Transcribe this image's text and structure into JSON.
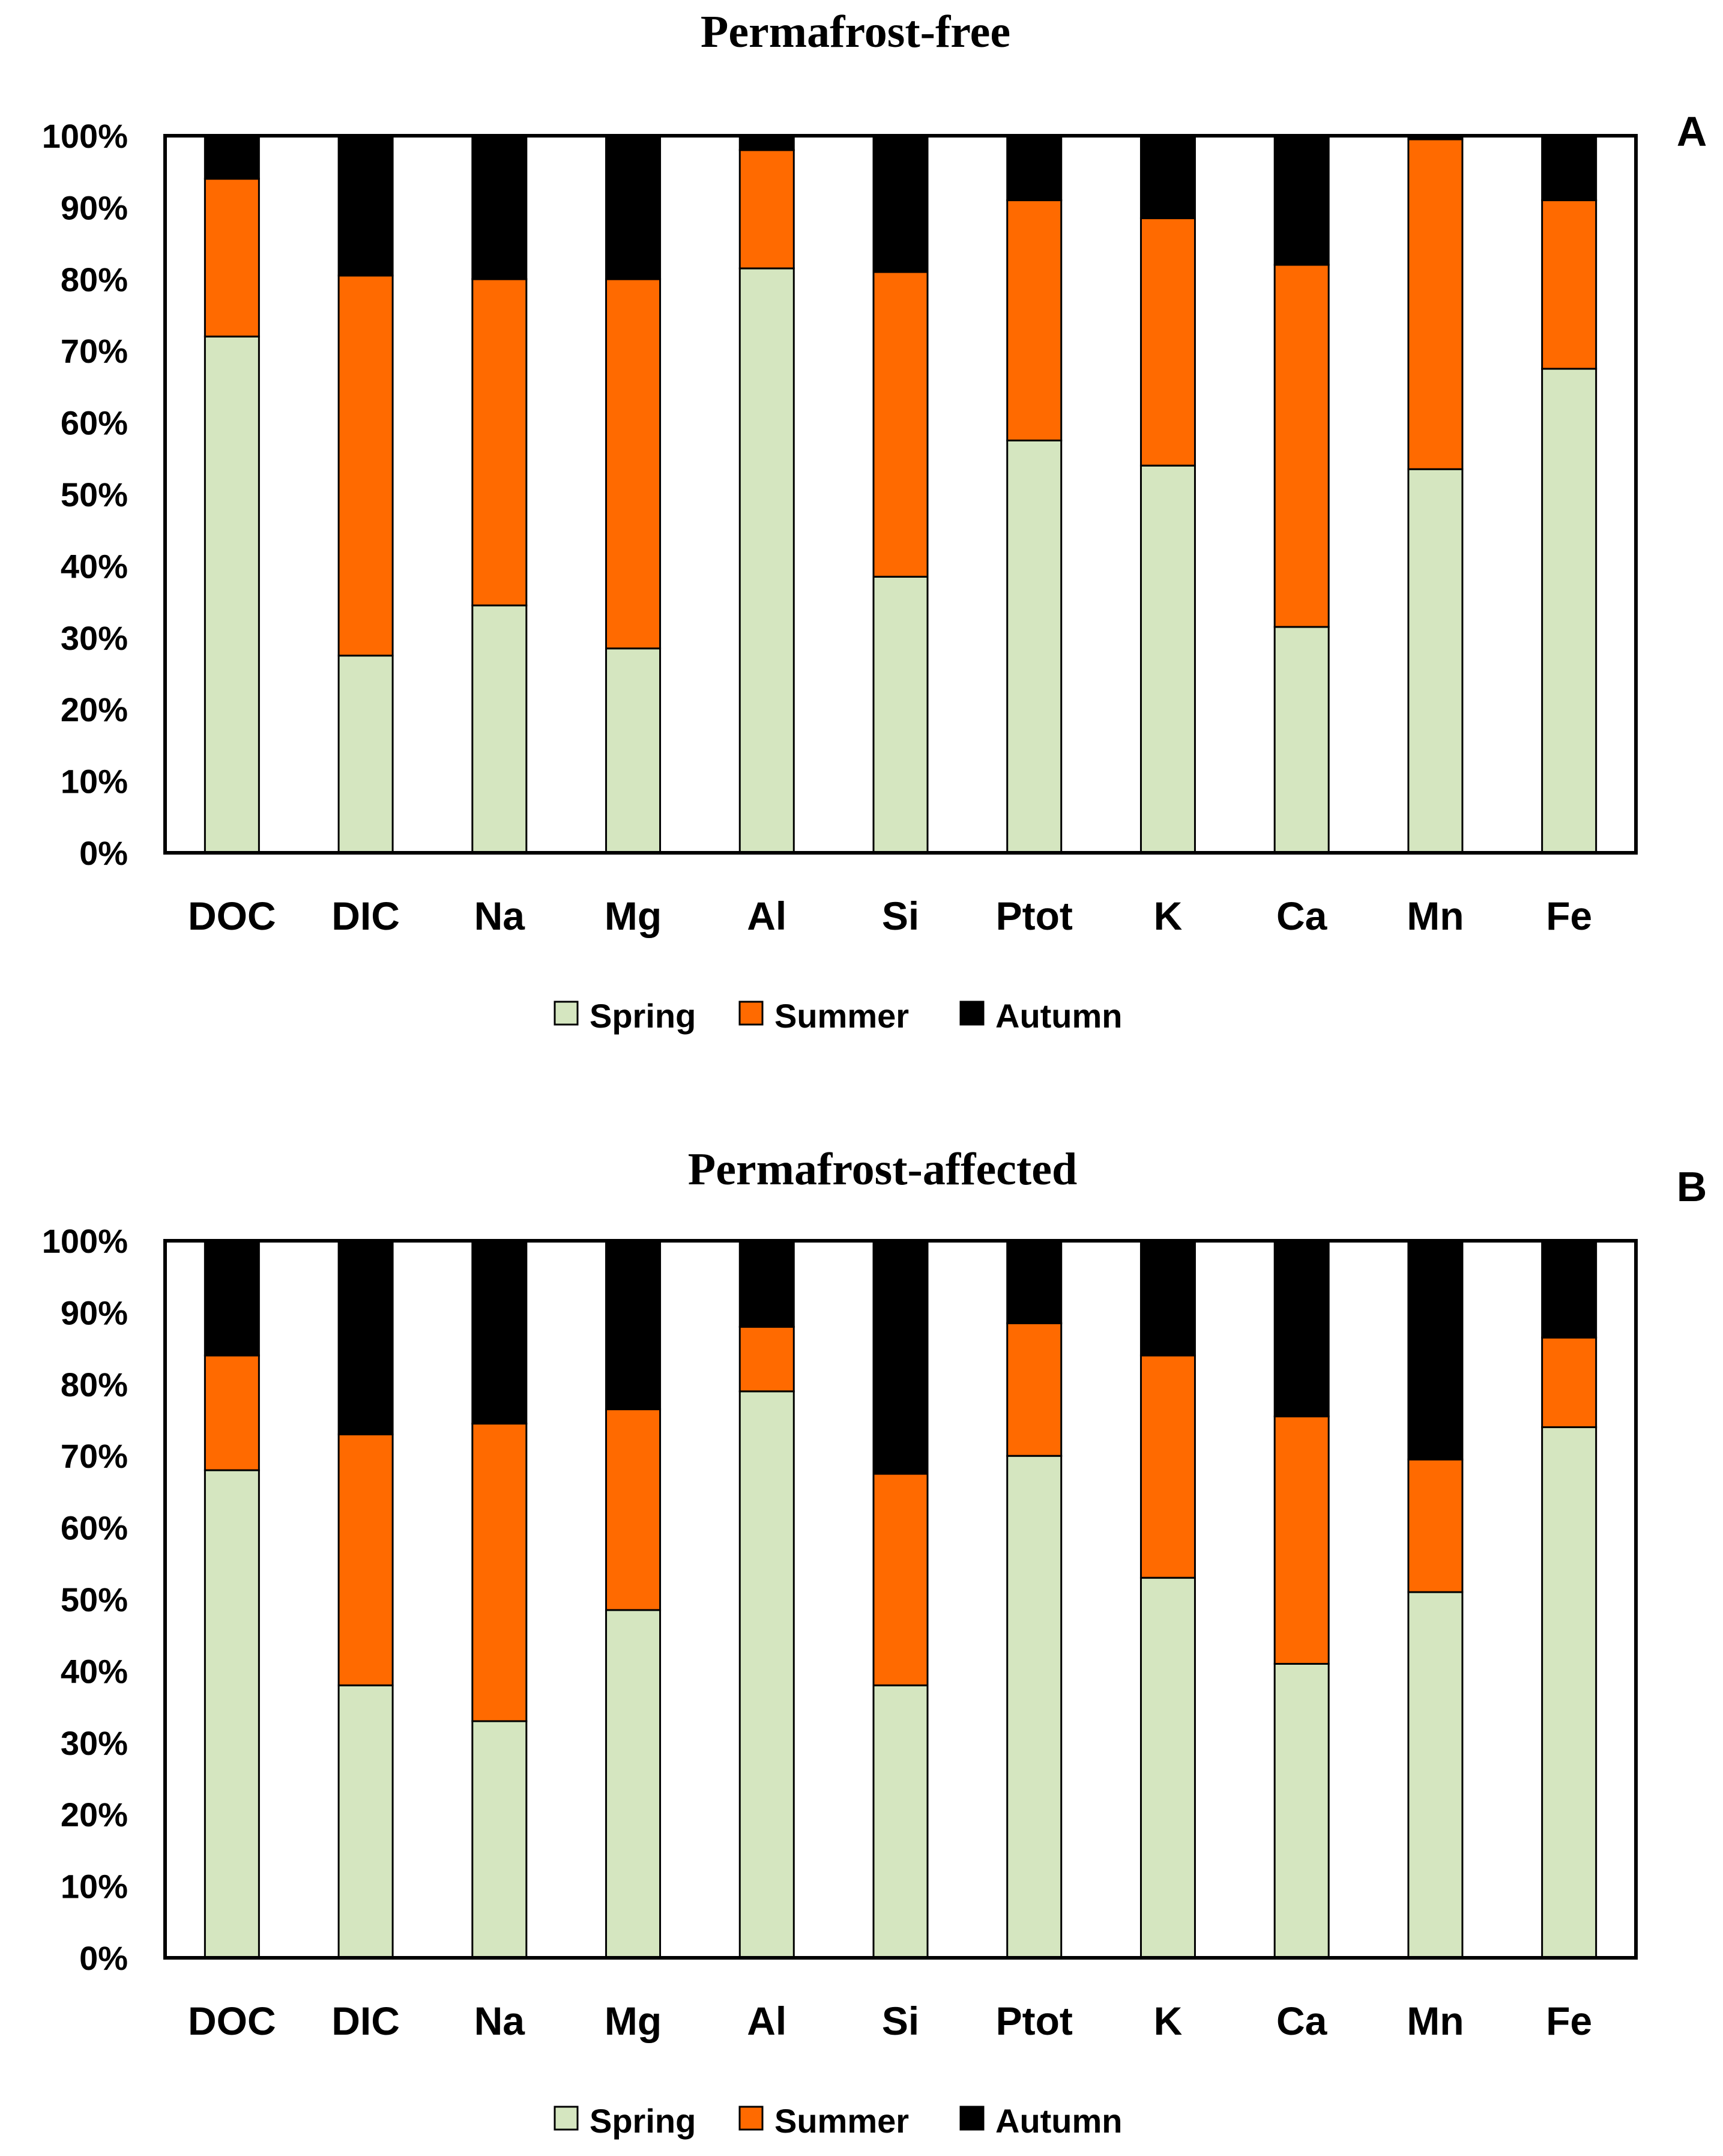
{
  "colors": {
    "spring": "#d5e6c0",
    "summer": "#ff6a00",
    "autumn": "#000000",
    "axis": "#000000",
    "background": "#ffffff"
  },
  "chart_data": [
    {
      "type": "bar",
      "stacked": true,
      "title": "Permafrost-free",
      "panel_label": "A",
      "categories": [
        "DOC",
        "DIC",
        "Na",
        "Mg",
        "Al",
        "Si",
        "Ptot",
        "K",
        "Ca",
        "Mn",
        "Fe"
      ],
      "series": [
        {
          "name": "Spring",
          "values": [
            72,
            27.5,
            34.5,
            28.5,
            81.5,
            38.5,
            57.5,
            54,
            31.5,
            53.5,
            67.5
          ]
        },
        {
          "name": "Summer",
          "values": [
            22,
            53,
            45.5,
            51.5,
            16.5,
            42.5,
            33.5,
            34.5,
            50.5,
            46,
            23.5
          ]
        },
        {
          "name": "Autumn",
          "values": [
            6,
            19.5,
            20,
            20,
            2,
            19,
            9,
            11.5,
            18,
            0.5,
            9
          ]
        }
      ],
      "yticks": [
        "0%",
        "10%",
        "20%",
        "30%",
        "40%",
        "50%",
        "60%",
        "70%",
        "80%",
        "90%",
        "100%"
      ],
      "ylim": [
        0,
        100
      ],
      "xlabel": "",
      "ylabel": "",
      "legend": [
        "Spring",
        "Summer",
        "Autumn"
      ],
      "legend_position": "bottom-center"
    },
    {
      "type": "bar",
      "stacked": true,
      "title": "Permafrost-affected",
      "panel_label": "B",
      "categories": [
        "DOC",
        "DIC",
        "Na",
        "Mg",
        "Al",
        "Si",
        "Ptot",
        "K",
        "Ca",
        "Mn",
        "Fe"
      ],
      "series": [
        {
          "name": "Spring",
          "values": [
            68,
            38,
            33,
            48.5,
            79,
            38,
            70,
            53,
            41,
            51,
            74
          ]
        },
        {
          "name": "Summer",
          "values": [
            16,
            35,
            41.5,
            28,
            9,
            29.5,
            18.5,
            31,
            34.5,
            18.5,
            12.5
          ]
        },
        {
          "name": "Autumn",
          "values": [
            16,
            27,
            25.5,
            23.5,
            12,
            32.5,
            11.5,
            16,
            24.5,
            30.5,
            13.5
          ]
        }
      ],
      "yticks": [
        "0%",
        "10%",
        "20%",
        "30%",
        "40%",
        "50%",
        "60%",
        "70%",
        "80%",
        "90%",
        "100%"
      ],
      "ylim": [
        0,
        100
      ],
      "xlabel": "",
      "ylabel": "",
      "legend": [
        "Spring",
        "Summer",
        "Autumn"
      ],
      "legend_position": "bottom-center"
    }
  ]
}
